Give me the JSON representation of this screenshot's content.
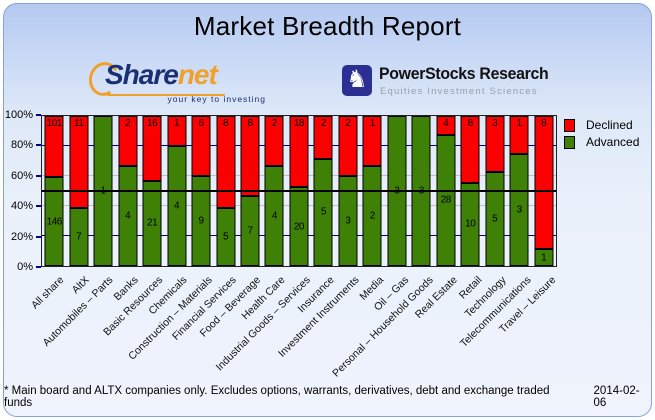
{
  "header": {
    "title": "Market Breadth Report"
  },
  "logos": {
    "sharenet": {
      "text_share": "Share",
      "text_net": "net",
      "tagline": "your key to investing"
    },
    "powerstocks": {
      "title": "PowerStocks Research",
      "subtitle": "Equities Investment Sciences"
    }
  },
  "icons": {
    "knight": "♞"
  },
  "chart_data": {
    "type": "bar",
    "stacked_percent": true,
    "title": "Market Breadth Report",
    "categories": [
      "All share",
      "AltX",
      "Automobiles – Parts",
      "Banks",
      "Basic Resources",
      "Chemicals",
      "Construction – Materials",
      "Financial Services",
      "Food – Beverage",
      "Health Care",
      "Industrial Goods – Services",
      "Insurance",
      "Investment Instruments",
      "Media",
      "Oil – Gas",
      "Personal – Household Goods",
      "Real Estate",
      "Retail",
      "Technology",
      "Telecommunications",
      "Travel – Leisure"
    ],
    "series": [
      {
        "name": "Declined",
        "color": "#fb0000",
        "values": [
          101,
          11,
          0,
          2,
          16,
          1,
          6,
          8,
          8,
          2,
          18,
          2,
          2,
          1,
          0,
          0,
          4,
          8,
          3,
          1,
          8
        ]
      },
      {
        "name": "Advanced",
        "color": "#3f8106",
        "values": [
          146,
          7,
          1,
          4,
          21,
          4,
          9,
          5,
          7,
          4,
          20,
          5,
          3,
          2,
          3,
          3,
          28,
          10,
          5,
          3,
          1
        ]
      }
    ],
    "xlabel": "",
    "ylabel": "",
    "ylim": [
      0,
      100
    ],
    "y_ticks": [
      {
        "pct": 0,
        "label": "0%"
      },
      {
        "pct": 20,
        "label": "20%"
      },
      {
        "pct": 40,
        "label": "40%"
      },
      {
        "pct": 60,
        "label": "60%"
      },
      {
        "pct": 80,
        "label": "80%"
      },
      {
        "pct": 100,
        "label": "100%"
      }
    ],
    "gridlines": [
      {
        "pct": 20,
        "color": "#00008b"
      },
      {
        "pct": 40,
        "color": "#c0c0c0"
      },
      {
        "pct": 60,
        "color": "#c0c0c0"
      },
      {
        "pct": 80,
        "color": "#00008b"
      }
    ],
    "reference_line": {
      "pct": 50,
      "color": "#000000"
    },
    "legend_position": "top-right",
    "bar_label_rule": "counts shown inside segments; zero counts hidden"
  },
  "footer": {
    "note": "* Main board and ALTX companies only. Excludes options, warrants, derivatives, debt and exchange traded funds",
    "date": "2014-02-06"
  }
}
